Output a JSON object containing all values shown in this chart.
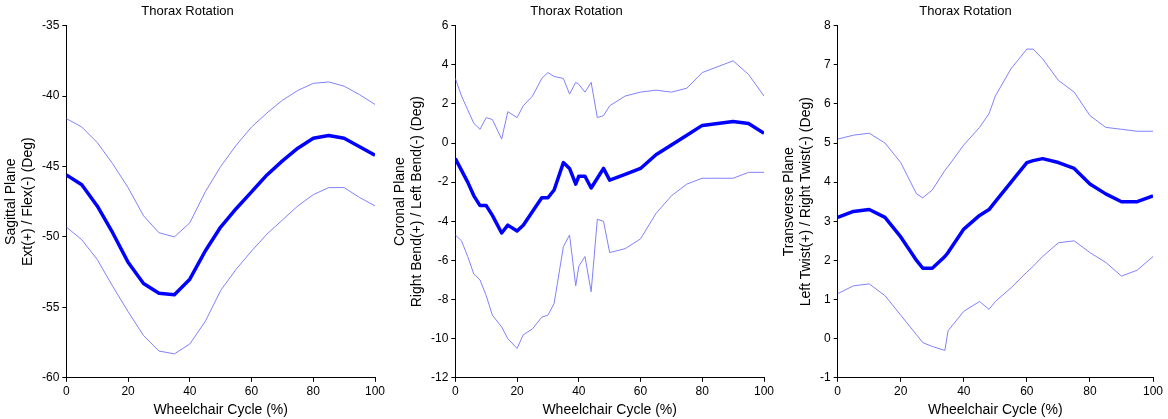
{
  "chart_data": [
    {
      "type": "line",
      "title": "Thorax Rotation",
      "xlabel": "Wheelchair Cycle (%)",
      "ylabel": "Sagittal Plane\nExt(+) / Flex(-) (Deg)",
      "x": [
        0,
        5,
        10,
        15,
        20,
        25,
        30,
        35,
        40,
        45,
        50,
        55,
        60,
        65,
        70,
        75,
        80,
        85,
        90,
        95,
        100
      ],
      "series": [
        {
          "color": "#0000ff",
          "values": [
            -45.6,
            -46.3,
            -47.8,
            -49.7,
            -51.8,
            -53.3,
            -54.0,
            -54.1,
            -53.0,
            -51.0,
            -49.3,
            -48.0,
            -46.8,
            -45.6,
            -44.6,
            -43.7,
            -43.0,
            -42.8,
            -43.0,
            -43.6,
            -44.2
          ]
        },
        {
          "color": "#8080ff",
          "values": [
            -41.6,
            -42.2,
            -43.3,
            -44.8,
            -46.5,
            -48.5,
            -49.7,
            -50.0,
            -49.0,
            -46.8,
            -45.0,
            -43.5,
            -42.2,
            -41.2,
            -40.3,
            -39.6,
            -39.1,
            -39.0,
            -39.3,
            -39.9,
            -40.6
          ]
        },
        {
          "color": "#8080ff",
          "values": [
            -49.3,
            -50.2,
            -51.6,
            -53.5,
            -55.3,
            -57.0,
            -58.1,
            -58.3,
            -57.6,
            -56.0,
            -53.8,
            -52.3,
            -51.0,
            -49.8,
            -48.8,
            -47.8,
            -47.0,
            -46.5,
            -46.5,
            -47.2,
            -47.8
          ]
        }
      ],
      "xlim": [
        0,
        100
      ],
      "xticks": [
        0,
        20,
        40,
        60,
        80,
        100
      ],
      "ylim": [
        -60,
        -35
      ],
      "yticks": [
        -60,
        -55,
        -50,
        -45,
        -40,
        -35
      ],
      "grid": false,
      "legend": false
    },
    {
      "type": "line",
      "title": "Thorax Rotation",
      "xlabel": "Wheelchair Cycle (%)",
      "ylabel": "Coronal Plane\nRight Bend(+) / Left Bend(-) (Deg)",
      "x": [
        0,
        2,
        4,
        6,
        8,
        10,
        12,
        15,
        17,
        20,
        22,
        25,
        28,
        30,
        32,
        35,
        37,
        39,
        40,
        42,
        44,
        46,
        48,
        50,
        55,
        60,
        65,
        70,
        75,
        80,
        85,
        90,
        95,
        100
      ],
      "series": [
        {
          "color": "#0000ff",
          "values": [
            -0.8,
            -1.4,
            -2.0,
            -2.7,
            -3.2,
            -3.2,
            -3.7,
            -4.6,
            -4.2,
            -4.5,
            -4.2,
            -3.5,
            -2.8,
            -2.8,
            -2.4,
            -1.0,
            -1.3,
            -2.1,
            -1.7,
            -1.7,
            -2.3,
            -1.8,
            -1.3,
            -1.9,
            -1.6,
            -1.3,
            -0.6,
            -0.1,
            0.4,
            0.9,
            1.0,
            1.1,
            1.0,
            0.5
          ]
        },
        {
          "color": "#8080ff",
          "values": [
            3.3,
            2.4,
            1.7,
            1.0,
            0.7,
            1.3,
            1.2,
            0.2,
            1.6,
            1.3,
            1.9,
            2.4,
            3.3,
            3.6,
            3.4,
            3.3,
            2.5,
            3.1,
            3.0,
            2.6,
            3.1,
            1.3,
            1.4,
            1.9,
            2.4,
            2.6,
            2.7,
            2.6,
            2.8,
            3.6,
            3.9,
            4.2,
            3.5,
            2.4
          ]
        },
        {
          "color": "#8080ff",
          "values": [
            -4.7,
            -5.0,
            -5.8,
            -6.7,
            -7.0,
            -7.8,
            -8.8,
            -9.4,
            -10.0,
            -10.5,
            -9.8,
            -9.5,
            -8.9,
            -8.8,
            -8.2,
            -5.3,
            -4.7,
            -7.3,
            -6.3,
            -5.8,
            -7.6,
            -3.9,
            -4.0,
            -5.6,
            -5.4,
            -4.9,
            -3.6,
            -2.7,
            -2.1,
            -1.8,
            -1.8,
            -1.8,
            -1.5,
            -1.5
          ]
        }
      ],
      "xlim": [
        0,
        100
      ],
      "xticks": [
        0,
        20,
        40,
        60,
        80,
        100
      ],
      "ylim": [
        -12,
        6
      ],
      "yticks": [
        -12,
        -10,
        -8,
        -6,
        -4,
        -2,
        0,
        2,
        4,
        6
      ],
      "grid": false,
      "legend": false
    },
    {
      "type": "line",
      "title": "Thorax Rotation",
      "xlabel": "Wheelchair Cycle (%)",
      "ylabel": "Transverse Plane\nLeft Twist(+) / Right Twist(-) (Deg)",
      "x": [
        0,
        5,
        10,
        15,
        20,
        25,
        27,
        30,
        34,
        35,
        40,
        45,
        48,
        50,
        55,
        60,
        62,
        65,
        70,
        75,
        80,
        85,
        90,
        95,
        100
      ],
      "series": [
        {
          "color": "#0000ff",
          "values": [
            3.1,
            3.25,
            3.3,
            3.1,
            2.6,
            2.0,
            1.8,
            1.8,
            2.1,
            2.2,
            2.8,
            3.15,
            3.3,
            3.5,
            4.0,
            4.5,
            4.55,
            4.6,
            4.5,
            4.35,
            3.95,
            3.7,
            3.5,
            3.5,
            3.65
          ]
        },
        {
          "color": "#8080ff",
          "values": [
            5.1,
            5.2,
            5.25,
            5.0,
            4.5,
            3.7,
            3.6,
            3.8,
            4.3,
            4.4,
            4.95,
            5.4,
            5.75,
            6.2,
            6.9,
            7.4,
            7.4,
            7.15,
            6.6,
            6.3,
            5.7,
            5.4,
            5.35,
            5.3,
            5.3
          ]
        },
        {
          "color": "#8080ff",
          "values": [
            1.15,
            1.35,
            1.4,
            1.1,
            0.6,
            0.1,
            -0.1,
            -0.2,
            -0.3,
            0.2,
            0.7,
            0.95,
            0.75,
            0.95,
            1.3,
            1.7,
            1.85,
            2.1,
            2.45,
            2.5,
            2.2,
            1.95,
            1.6,
            1.75,
            2.1
          ]
        }
      ],
      "xlim": [
        0,
        100
      ],
      "xticks": [
        0,
        20,
        40,
        60,
        80,
        100
      ],
      "ylim": [
        -1,
        8
      ],
      "yticks": [
        -1,
        0,
        1,
        2,
        3,
        4,
        5,
        6,
        7,
        8
      ],
      "grid": false,
      "legend": false
    }
  ]
}
